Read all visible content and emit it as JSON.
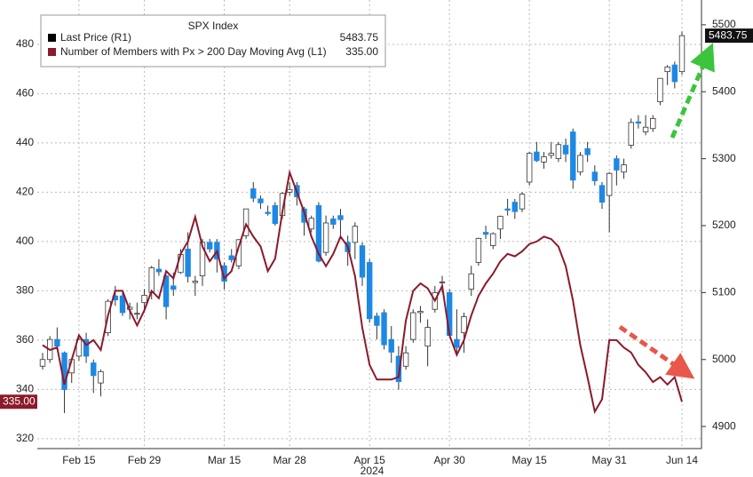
{
  "chart_data": {
    "type": "candlestick",
    "title": "SPX Index",
    "categories": [
      null,
      null,
      null,
      null,
      null,
      "Feb 15",
      null,
      null,
      null,
      null,
      null,
      null,
      null,
      null,
      "Feb 29",
      null,
      null,
      null,
      null,
      null,
      null,
      null,
      null,
      null,
      null,
      "Mar 15",
      null,
      null,
      null,
      null,
      null,
      null,
      null,
      null,
      "Mar 28",
      null,
      null,
      null,
      null,
      null,
      null,
      null,
      null,
      null,
      null,
      "Apr 15",
      null,
      null,
      null,
      null,
      null,
      null,
      null,
      null,
      null,
      null,
      "Apr 30",
      null,
      null,
      null,
      null,
      null,
      null,
      null,
      null,
      null,
      null,
      "May 15",
      null,
      null,
      null,
      null,
      null,
      null,
      null,
      null,
      null,
      null,
      "May 31",
      null,
      null,
      null,
      null,
      null,
      null,
      null,
      null,
      null,
      "Jun 14"
    ],
    "x_sublabel": "2024",
    "series": [
      {
        "name": "Last Price (R1)",
        "axis": "y2",
        "color": "#1e88e5",
        "up_color": "#ffffff",
        "edge_color": "#333333",
        "last_value": 5483.75,
        "open": [
          4990,
          5000,
          5030,
          5010,
          4980,
          5005,
          5030,
          4995,
          4965,
          5040,
          5095,
          5095,
          5075,
          5068,
          5085,
          5100,
          5135,
          5125,
          5110,
          5130,
          5165,
          5115,
          5125,
          5175,
          5175,
          5140,
          5155,
          5140,
          5185,
          5255,
          5240,
          5220,
          5230,
          5215,
          5250,
          5260,
          5225,
          5195,
          5230,
          5160,
          5210,
          5215,
          5175,
          5175,
          5170,
          5145,
          5065,
          5070,
          5030,
          5005,
          4990,
          5030,
          5070,
          5020,
          5075,
          5115,
          5100,
          5030,
          5040,
          5105,
          5145,
          5190,
          5170,
          5195,
          5225,
          5235,
          5225,
          5265,
          5310,
          5295,
          5305,
          5300,
          5320,
          5340,
          5280,
          5315,
          5280,
          5260,
          5245,
          5300,
          5280,
          5320,
          5355,
          5340,
          5345,
          5385,
          5430,
          5440,
          5430
        ],
        "high": [
          5010,
          5035,
          5048,
          5012,
          5002,
          5032,
          5040,
          5000,
          4985,
          5090,
          5110,
          5100,
          5085,
          5085,
          5105,
          5140,
          5150,
          5127,
          5130,
          5165,
          5190,
          5125,
          5180,
          5180,
          5180,
          5145,
          5165,
          5180,
          5225,
          5265,
          5245,
          5230,
          5235,
          5250,
          5265,
          5265,
          5228,
          5215,
          5235,
          5215,
          5215,
          5225,
          5185,
          5205,
          5175,
          5150,
          5070,
          5075,
          5050,
          5020,
          5020,
          5075,
          5080,
          5060,
          5110,
          5125,
          5105,
          5075,
          5070,
          5140,
          5182,
          5200,
          5190,
          5215,
          5240,
          5240,
          5250,
          5310,
          5325,
          5310,
          5325,
          5325,
          5330,
          5345,
          5310,
          5325,
          5290,
          5265,
          5280,
          5305,
          5300,
          5360,
          5365,
          5365,
          5365,
          5420,
          5440,
          5445,
          5490
        ],
        "low": [
          4985,
          4995,
          5015,
          4920,
          4965,
          4998,
          4995,
          4950,
          4945,
          5035,
          5080,
          5065,
          5060,
          5060,
          5070,
          5090,
          5125,
          5060,
          5095,
          5128,
          5115,
          5095,
          5110,
          5160,
          5130,
          5105,
          5145,
          5135,
          5180,
          5235,
          5225,
          5215,
          5200,
          5210,
          5245,
          5230,
          5185,
          5190,
          5145,
          5155,
          5195,
          5180,
          5140,
          5150,
          5110,
          5055,
          5030,
          5015,
          4995,
          4955,
          4985,
          5025,
          5055,
          4990,
          5070,
          5100,
          5035,
          5010,
          5010,
          5095,
          5140,
          5180,
          5165,
          5180,
          5215,
          5210,
          5220,
          5260,
          5295,
          5285,
          5300,
          5295,
          5295,
          5255,
          5275,
          5295,
          5260,
          5225,
          5190,
          5260,
          5270,
          5315,
          5345,
          5335,
          5340,
          5380,
          5410,
          5405,
          5425
        ],
        "close": [
          5000,
          5030,
          5020,
          4955,
          5000,
          5030,
          5005,
          4976,
          4982,
          5087,
          5089,
          5070,
          5078,
          5069,
          5096,
          5137,
          5131,
          5079,
          5105,
          5157,
          5124,
          5117,
          5175,
          5165,
          5150,
          5117,
          5149,
          5179,
          5225,
          5241,
          5234,
          5218,
          5203,
          5248,
          5254,
          5243,
          5205,
          5211,
          5147,
          5204,
          5202,
          5209,
          5161,
          5199,
          5123,
          5061,
          5051,
          5022,
          5011,
          4967,
          5010,
          5070,
          5072,
          5048,
          5100,
          5116,
          5036,
          5018,
          5064,
          5128,
          5181,
          5187,
          5188,
          5214,
          5223,
          5221,
          5247,
          5308,
          5297,
          5303,
          5308,
          5321,
          5307,
          5268,
          5305,
          5306,
          5267,
          5235,
          5278,
          5283,
          5291,
          5354,
          5353,
          5347,
          5360,
          5420,
          5437,
          5415,
          5483.75
        ]
      },
      {
        "name": "Number of Members with Px > 200 Day Moving Avg (L1)",
        "type": "line",
        "axis": "y",
        "color": "#8b1a2b",
        "last_value": {
          "value": 335,
          "label": "335.00"
        },
        "values": [
          358,
          356,
          357,
          342,
          352,
          362,
          358,
          360,
          356,
          370,
          380,
          380,
          372,
          366,
          372,
          380,
          377,
          388,
          385,
          395,
          400,
          410,
          398,
          392,
          396,
          385,
          388,
          398,
          407,
          402,
          398,
          388,
          393,
          412,
          428,
          420,
          412,
          402,
          395,
          390,
          395,
          402,
          398,
          386,
          365,
          350,
          344,
          344,
          344,
          345,
          368,
          380,
          383,
          381,
          376,
          382,
          362,
          354,
          360,
          370,
          378,
          383,
          387,
          392,
          395,
          394,
          396,
          399,
          400,
          402,
          401,
          398,
          390,
          376,
          358,
          345,
          331,
          336,
          360,
          360,
          357,
          355,
          350,
          347,
          343,
          345,
          342,
          345,
          335
        ]
      }
    ],
    "ylim": [
      316,
      498
    ],
    "yticks": [
      320,
      340,
      360,
      380,
      400,
      420,
      440,
      460,
      480
    ],
    "y2lim": [
      4867,
      5537
    ],
    "y2ticks": [
      4900,
      5000,
      5100,
      5200,
      5300,
      5400,
      5500
    ],
    "grid": true
  }
}
